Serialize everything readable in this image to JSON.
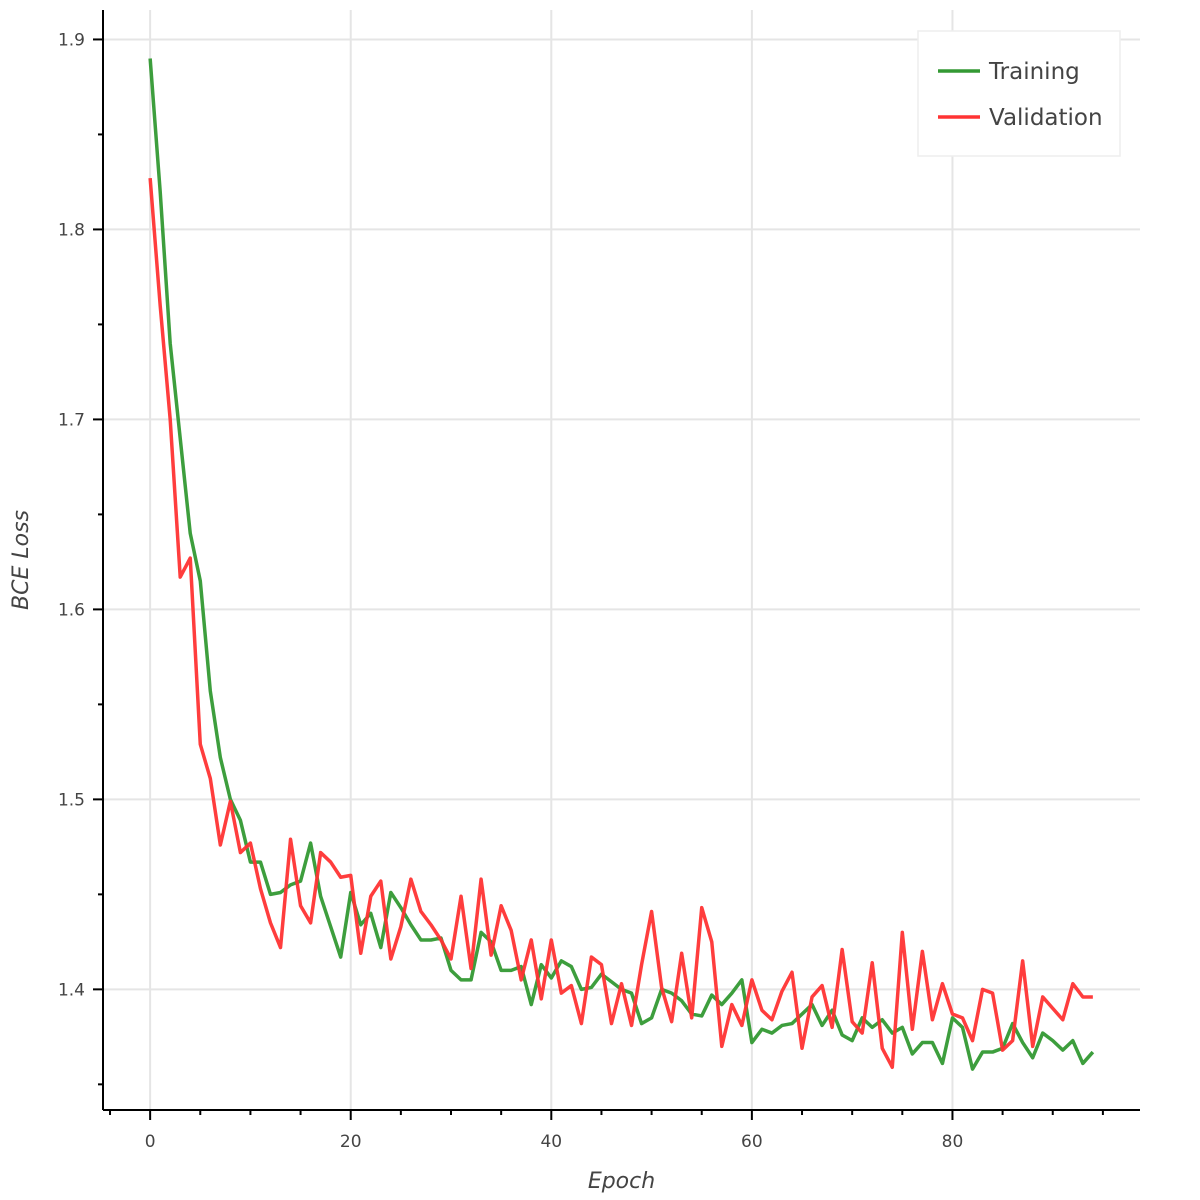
{
  "chart_data": {
    "type": "line",
    "xlabel": "Epoch",
    "ylabel": "BCE Loss",
    "xlim": [
      -4.7,
      98.7
    ],
    "ylim": [
      1.3365,
      1.9155
    ],
    "x_ticks": [
      0,
      20,
      40,
      60,
      80
    ],
    "y_ticks": [
      1.4,
      1.5,
      1.6,
      1.7,
      1.8,
      1.9
    ],
    "x_tick_labels": [
      "0",
      "20",
      "40",
      "60",
      "80"
    ],
    "y_tick_labels": [
      "1.4",
      "1.5",
      "1.6",
      "1.7",
      "1.8",
      "1.9"
    ],
    "grid": true,
    "legend_position": "top-right",
    "colors": {
      "Training": "#339933",
      "Validation": "#ff3333"
    },
    "x": [
      0,
      1,
      2,
      3,
      4,
      5,
      6,
      7,
      8,
      9,
      10,
      11,
      12,
      13,
      14,
      15,
      16,
      17,
      18,
      19,
      20,
      21,
      22,
      23,
      24,
      25,
      26,
      27,
      28,
      29,
      30,
      31,
      32,
      33,
      34,
      35,
      36,
      37,
      38,
      39,
      40,
      41,
      42,
      43,
      44,
      45,
      46,
      47,
      48,
      49,
      50,
      51,
      52,
      53,
      54,
      55,
      56,
      57,
      58,
      59,
      60,
      61,
      62,
      63,
      64,
      65,
      66,
      67,
      68,
      69,
      70,
      71,
      72,
      73,
      74,
      75,
      76,
      77,
      78,
      79,
      80,
      81,
      82,
      83,
      84,
      85,
      86,
      87,
      88,
      89,
      90,
      91,
      92,
      93,
      94
    ],
    "series": [
      {
        "name": "Training",
        "values": [
          1.89,
          1.82,
          1.74,
          1.69,
          1.64,
          1.615,
          1.557,
          1.522,
          1.5,
          1.489,
          1.467,
          1.467,
          1.45,
          1.451,
          1.455,
          1.457,
          1.477,
          1.449,
          1.433,
          1.417,
          1.451,
          1.434,
          1.44,
          1.422,
          1.451,
          1.443,
          1.434,
          1.426,
          1.426,
          1.427,
          1.41,
          1.405,
          1.405,
          1.43,
          1.425,
          1.41,
          1.41,
          1.412,
          1.392,
          1.413,
          1.406,
          1.415,
          1.412,
          1.4,
          1.401,
          1.408,
          1.404,
          1.4,
          1.398,
          1.382,
          1.385,
          1.4,
          1.398,
          1.394,
          1.387,
          1.386,
          1.397,
          1.392,
          1.398,
          1.405,
          1.372,
          1.379,
          1.377,
          1.381,
          1.382,
          1.387,
          1.392,
          1.381,
          1.389,
          1.376,
          1.373,
          1.385,
          1.38,
          1.384,
          1.377,
          1.38,
          1.366,
          1.372,
          1.372,
          1.361,
          1.385,
          1.38,
          1.358,
          1.367,
          1.367,
          1.369,
          1.382,
          1.372,
          1.364,
          1.377,
          1.373,
          1.368,
          1.373,
          1.361,
          1.367
        ]
      },
      {
        "name": "Validation",
        "values": [
          1.827,
          1.76,
          1.7,
          1.617,
          1.627,
          1.529,
          1.511,
          1.476,
          1.499,
          1.472,
          1.477,
          1.453,
          1.435,
          1.422,
          1.479,
          1.444,
          1.435,
          1.472,
          1.467,
          1.459,
          1.46,
          1.419,
          1.449,
          1.457,
          1.416,
          1.433,
          1.458,
          1.441,
          1.434,
          1.426,
          1.416,
          1.449,
          1.411,
          1.458,
          1.418,
          1.444,
          1.431,
          1.405,
          1.426,
          1.395,
          1.426,
          1.398,
          1.402,
          1.382,
          1.417,
          1.413,
          1.382,
          1.403,
          1.381,
          1.413,
          1.441,
          1.401,
          1.383,
          1.419,
          1.385,
          1.443,
          1.425,
          1.37,
          1.392,
          1.381,
          1.405,
          1.389,
          1.384,
          1.399,
          1.409,
          1.369,
          1.396,
          1.402,
          1.38,
          1.421,
          1.383,
          1.377,
          1.414,
          1.369,
          1.359,
          1.43,
          1.379,
          1.42,
          1.384,
          1.403,
          1.387,
          1.385,
          1.373,
          1.4,
          1.398,
          1.368,
          1.373,
          1.415,
          1.37,
          1.396,
          1.39,
          1.384,
          1.403,
          1.396,
          1.396
        ]
      }
    ]
  }
}
